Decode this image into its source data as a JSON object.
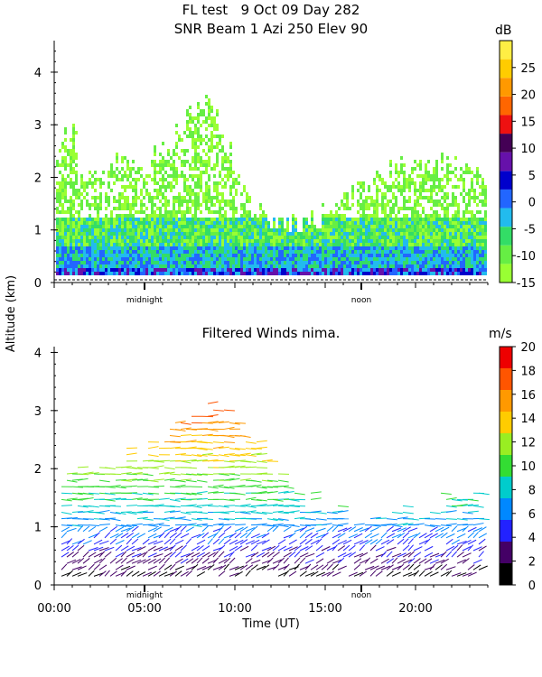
{
  "chart_data": [
    {
      "type": "heatmap",
      "title": "FL test   9 Oct 09 Day 282",
      "subtitle": "SNR Beam 1 Azi 250 Elev 90",
      "ylabel": "Altitude (km)",
      "ylim": [
        0,
        4.6
      ],
      "yticks": [
        "0",
        "1",
        "2",
        "3",
        "4"
      ],
      "x_markers": [
        "midnight",
        "noon"
      ],
      "colorbar": {
        "unit": "dB",
        "ticks": [
          "-15",
          "-10",
          "-5",
          "0",
          "5",
          "10",
          "15",
          "20",
          "25"
        ],
        "colors": [
          "#99ff33",
          "#66ee44",
          "#33dd66",
          "#22bbee",
          "#2266ff",
          "#0000cc",
          "#6611aa",
          "#440055",
          "#ee1111",
          "#ff6600",
          "#ff9900",
          "#ffcc00",
          "#ffee44"
        ]
      }
    },
    {
      "type": "scatter",
      "title": "Filtered Winds nima.",
      "xlabel": "Time (UT)",
      "xticks": [
        "00:00",
        "05:00",
        "10:00",
        "15:00",
        "20:00"
      ],
      "x_markers": [
        "midnight",
        "noon"
      ],
      "ylim": [
        0,
        4.1
      ],
      "yticks": [
        "0",
        "1",
        "2",
        "3",
        "4"
      ],
      "colorbar": {
        "unit": "m/s",
        "ticks": [
          "0",
          "2",
          "4",
          "6",
          "8",
          "10",
          "12",
          "14",
          "16",
          "18",
          "20"
        ],
        "colors": [
          "#000000",
          "#440066",
          "#2222ff",
          "#0088ff",
          "#00cccc",
          "#33dd33",
          "#99ee22",
          "#ffcc00",
          "#ff9900",
          "#ff5500",
          "#ee0000"
        ]
      }
    }
  ]
}
